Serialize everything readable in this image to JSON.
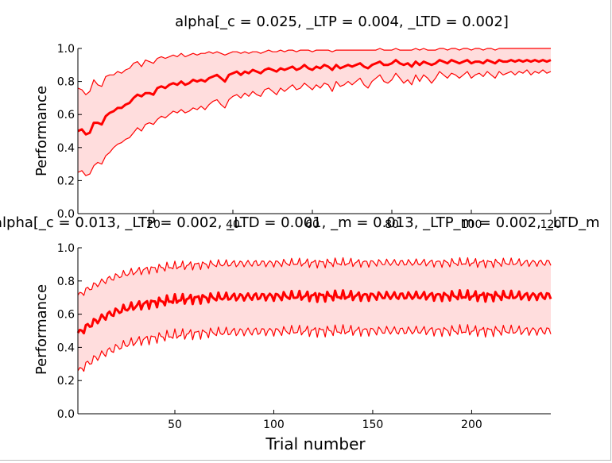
{
  "chart_data": [
    {
      "type": "line",
      "title": "alpha[_c = 0.025, _LTP = 0.004, _LTD = 0.002]",
      "xlabel": "",
      "ylabel": "Performance",
      "xlim": [
        1,
        120
      ],
      "ylim": [
        0.0,
        1.0
      ],
      "x_ticks": [
        "20",
        "40",
        "60",
        "80",
        "100",
        "120"
      ],
      "y_ticks": [
        "0.0",
        "0.2",
        "0.4",
        "0.6",
        "0.8",
        "1.0"
      ],
      "color": "#ff0000",
      "fill_color": "#ffdddd",
      "x_range": [
        1,
        120
      ],
      "mean": [
        0.5,
        0.51,
        0.48,
        0.49,
        0.55,
        0.55,
        0.54,
        0.59,
        0.61,
        0.62,
        0.64,
        0.64,
        0.66,
        0.67,
        0.7,
        0.72,
        0.71,
        0.73,
        0.73,
        0.72,
        0.76,
        0.77,
        0.76,
        0.78,
        0.79,
        0.78,
        0.8,
        0.78,
        0.79,
        0.81,
        0.8,
        0.81,
        0.8,
        0.82,
        0.83,
        0.84,
        0.82,
        0.8,
        0.84,
        0.85,
        0.86,
        0.84,
        0.86,
        0.85,
        0.87,
        0.86,
        0.85,
        0.87,
        0.88,
        0.87,
        0.86,
        0.88,
        0.87,
        0.88,
        0.89,
        0.87,
        0.88,
        0.9,
        0.88,
        0.87,
        0.89,
        0.88,
        0.9,
        0.89,
        0.87,
        0.9,
        0.88,
        0.89,
        0.9,
        0.89,
        0.9,
        0.91,
        0.89,
        0.88,
        0.9,
        0.91,
        0.92,
        0.9,
        0.9,
        0.91,
        0.93,
        0.91,
        0.9,
        0.91,
        0.89,
        0.92,
        0.9,
        0.92,
        0.91,
        0.9,
        0.91,
        0.93,
        0.92,
        0.91,
        0.93,
        0.92,
        0.91,
        0.92,
        0.93,
        0.91,
        0.92,
        0.92,
        0.91,
        0.93,
        0.92,
        0.91,
        0.93,
        0.92,
        0.92,
        0.93,
        0.92,
        0.93,
        0.92,
        0.93,
        0.92,
        0.93,
        0.92,
        0.93,
        0.92,
        0.93
      ],
      "upper": [
        0.76,
        0.75,
        0.72,
        0.74,
        0.81,
        0.78,
        0.77,
        0.83,
        0.84,
        0.84,
        0.86,
        0.85,
        0.87,
        0.88,
        0.91,
        0.92,
        0.89,
        0.93,
        0.92,
        0.91,
        0.94,
        0.95,
        0.94,
        0.95,
        0.96,
        0.95,
        0.97,
        0.95,
        0.96,
        0.97,
        0.96,
        0.97,
        0.97,
        0.98,
        0.97,
        0.98,
        0.97,
        0.96,
        0.97,
        0.98,
        0.98,
        0.97,
        0.98,
        0.97,
        0.98,
        0.98,
        0.97,
        0.98,
        0.99,
        0.98,
        0.98,
        0.99,
        0.98,
        0.99,
        0.99,
        0.98,
        0.99,
        0.99,
        0.99,
        0.98,
        0.99,
        0.99,
        0.99,
        0.99,
        0.98,
        0.99,
        0.99,
        0.99,
        0.99,
        0.99,
        0.99,
        0.99,
        0.99,
        0.99,
        0.99,
        0.99,
        1.0,
        0.99,
        0.99,
        0.99,
        1.0,
        0.99,
        0.99,
        0.99,
        0.99,
        1.0,
        0.99,
        1.0,
        0.99,
        0.99,
        0.99,
        1.0,
        1.0,
        0.99,
        1.0,
        1.0,
        0.99,
        1.0,
        1.0,
        0.99,
        1.0,
        1.0,
        0.99,
        1.0,
        1.0,
        0.99,
        1.0,
        1.0,
        1.0,
        1.0,
        1.0,
        1.0,
        1.0,
        1.0,
        1.0,
        1.0,
        1.0,
        1.0,
        1.0,
        1.0
      ],
      "lower": [
        0.25,
        0.26,
        0.23,
        0.24,
        0.29,
        0.31,
        0.3,
        0.35,
        0.37,
        0.4,
        0.42,
        0.43,
        0.45,
        0.46,
        0.49,
        0.52,
        0.5,
        0.54,
        0.55,
        0.54,
        0.57,
        0.59,
        0.58,
        0.6,
        0.62,
        0.61,
        0.63,
        0.61,
        0.62,
        0.64,
        0.63,
        0.65,
        0.63,
        0.66,
        0.68,
        0.69,
        0.66,
        0.64,
        0.69,
        0.71,
        0.72,
        0.7,
        0.73,
        0.71,
        0.74,
        0.72,
        0.71,
        0.75,
        0.76,
        0.74,
        0.72,
        0.76,
        0.74,
        0.76,
        0.78,
        0.75,
        0.76,
        0.79,
        0.77,
        0.75,
        0.78,
        0.76,
        0.79,
        0.78,
        0.74,
        0.8,
        0.77,
        0.78,
        0.8,
        0.78,
        0.8,
        0.82,
        0.78,
        0.76,
        0.8,
        0.82,
        0.84,
        0.8,
        0.79,
        0.81,
        0.85,
        0.82,
        0.79,
        0.81,
        0.78,
        0.84,
        0.8,
        0.84,
        0.82,
        0.79,
        0.82,
        0.86,
        0.84,
        0.82,
        0.85,
        0.84,
        0.82,
        0.84,
        0.86,
        0.82,
        0.84,
        0.85,
        0.83,
        0.86,
        0.84,
        0.82,
        0.86,
        0.84,
        0.85,
        0.86,
        0.84,
        0.86,
        0.85,
        0.87,
        0.84,
        0.86,
        0.85,
        0.87,
        0.85,
        0.86
      ]
    },
    {
      "type": "line",
      "title": "alpha[_c = 0.013, _LTP = 0.002, _LTD = 0.001, _m = 0.013, _LTP_m = 0.002, _LTD_m",
      "xlabel": "Trial number",
      "ylabel": "Performance",
      "xlim": [
        1,
        240
      ],
      "ylim": [
        0.0,
        1.0
      ],
      "x_ticks": [
        "50",
        "100",
        "150",
        "200"
      ],
      "y_ticks": [
        "0.0",
        "0.2",
        "0.4",
        "0.6",
        "0.8",
        "1.0"
      ],
      "color": "#ff0000",
      "fill_color": "#ffdddd",
      "x_range": [
        1,
        240
      ],
      "mean_start": 0.47,
      "mean_plateau": 0.71,
      "band_upper_start": 0.7,
      "band_upper_plateau": 0.91,
      "band_lower_start": 0.24,
      "band_lower_plateau": 0.5,
      "rise_constant": 22,
      "noise_amplitude": 0.035
    }
  ]
}
